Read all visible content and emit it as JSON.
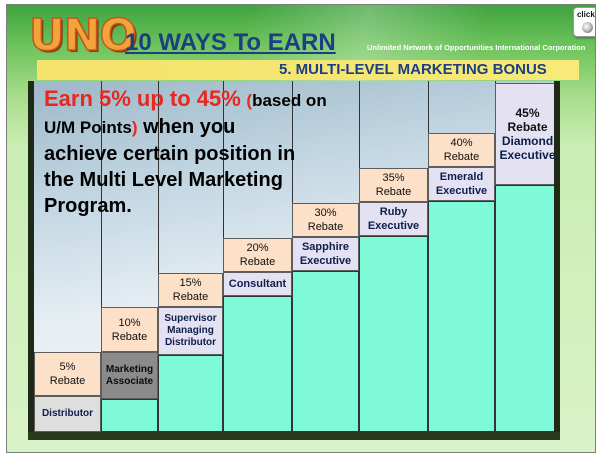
{
  "header": {
    "logo_text": "UNO",
    "title": "10 WAYS To EARN",
    "organization": "Unlimited Network of Opportunities International Corporation",
    "subtitle": "5. MULTI-LEVEL MARKETING  BONUS",
    "click_button": {
      "label": "click.",
      "icon": "record-button-icon"
    }
  },
  "headline": {
    "part1": "Earn 5% up to 45%",
    "part2": "(",
    "part3": "based on",
    "part4": "U/M Points",
    "part5": ")",
    "part6": " when you",
    "line3": "achieve certain position in",
    "line4": "the Multi Level Marketing",
    "line5": "Program."
  },
  "levels": [
    {
      "position": "Distributor",
      "rebate_pct": "5%",
      "rebate_word": "Rebate",
      "rebate_value": 5
    },
    {
      "position": "Marketing Associate",
      "rebate_pct": "10%",
      "rebate_word": "Rebate",
      "rebate_value": 10
    },
    {
      "position": "Supervisor Managing Distributor",
      "rebate_pct": "15%",
      "rebate_word": "Rebate",
      "rebate_value": 15
    },
    {
      "position": "Consultant",
      "rebate_pct": "20%",
      "rebate_word": "Rebate",
      "rebate_value": 20
    },
    {
      "position": "Sapphire Executive",
      "rebate_pct": "30%",
      "rebate_word": "Rebate",
      "rebate_value": 30
    },
    {
      "position": "Ruby Executive",
      "rebate_pct": "35%",
      "rebate_word": "Rebate",
      "rebate_value": 35
    },
    {
      "position": "Emerald Executive",
      "rebate_pct": "40%",
      "rebate_word": "Rebate",
      "rebate_value": 40
    },
    {
      "position": "Diamond Executive",
      "rebate_pct": "45%",
      "rebate_word": "Rebate",
      "rebate_value": 45
    }
  ],
  "colors": {
    "title_blue": "#1c3e82",
    "headline_red": "#e8271d",
    "rebate_peach": "#fce0c7",
    "step_aqua": "#7ffad8",
    "banner_yellow": "#f3e26c"
  }
}
